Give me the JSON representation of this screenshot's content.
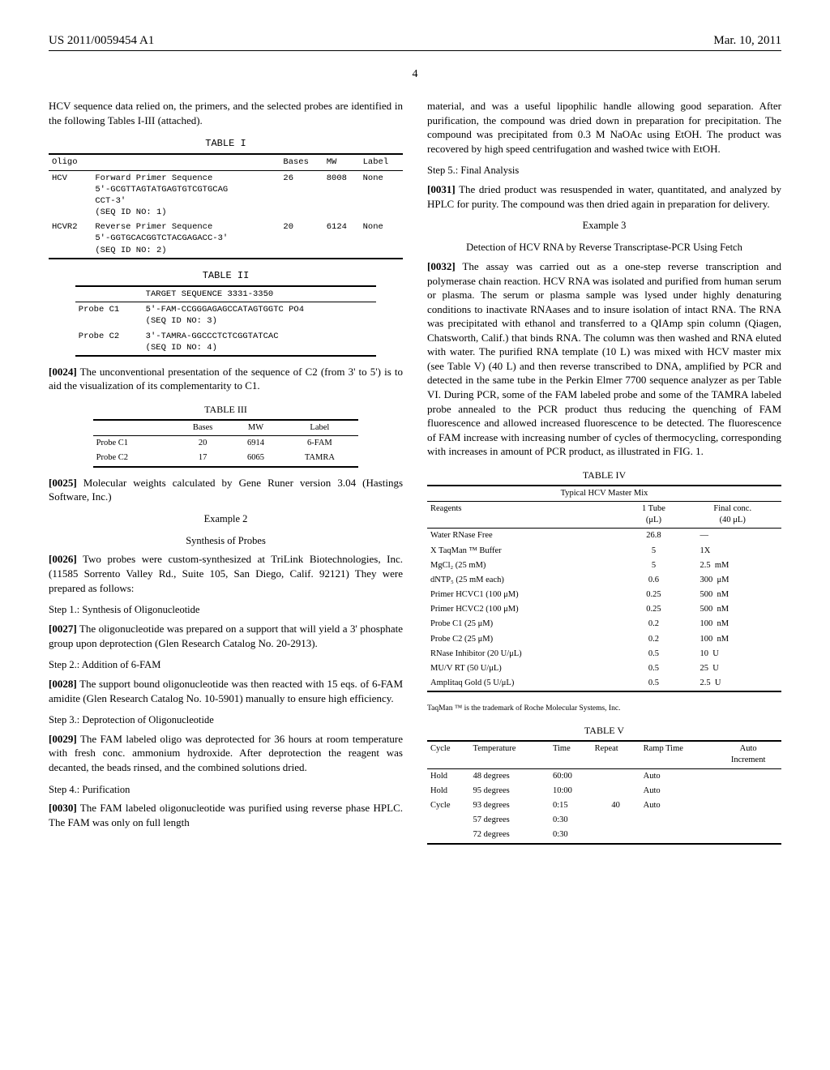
{
  "header": {
    "docnum": "US 2011/0059454 A1",
    "date": "Mar. 10, 2011"
  },
  "pagenum": "4",
  "left": {
    "intro": "HCV sequence data relied on, the primers, and the selected probes are identified in the following Tables I-III (attached).",
    "table1": {
      "title": "TABLE I",
      "cols": [
        "Oligo",
        "",
        "Bases",
        "MW",
        "Label"
      ],
      "rows": [
        {
          "oligo": "HCV",
          "desc": "Forward Primer Sequence\n5'-GCGTTAGTATGAGTGTCGTGCAG\nCCT-3'\n(SEQ ID NO: 1)",
          "bases": "26",
          "mw": "8008",
          "label": "None"
        },
        {
          "oligo": "HCVR2",
          "desc": "Reverse Primer Sequence\n5'-GGTGCACGGTCTACGAGACC-3'\n(SEQ ID NO: 2)",
          "bases": "20",
          "mw": "6124",
          "label": "None"
        }
      ]
    },
    "table2": {
      "title": "TABLE II",
      "header": "TARGET SEQUENCE 3331-3350",
      "rows": [
        {
          "probe": "Probe C1",
          "seq": "5'-FAM-CCGGGAGAGCCATAGTGGTC PO4\n(SEQ ID NO: 3)"
        },
        {
          "probe": "Probe C2",
          "seq": "3'-TAMRA-GGCCCTCTCGGTATCAC\n(SEQ ID NO: 4)"
        }
      ]
    },
    "para24": {
      "num": "[0024]",
      "text": "The unconventional presentation of the sequence of C2 (from 3' to 5') is to aid the visualization of its complementarity to C1."
    },
    "table3": {
      "title": "TABLE III",
      "cols": [
        "",
        "Bases",
        "MW",
        "Label"
      ],
      "rows": [
        {
          "name": "Probe C1",
          "bases": "20",
          "mw": "6914",
          "label": "6-FAM"
        },
        {
          "name": "Probe C2",
          "bases": "17",
          "mw": "6065",
          "label": "TAMRA"
        }
      ]
    },
    "para25": {
      "num": "[0025]",
      "text": "Molecular weights calculated by Gene Runer version 3.04 (Hastings Software, Inc.)"
    },
    "example2": {
      "title": "Example 2",
      "subtitle": "Synthesis of Probes"
    },
    "para26": {
      "num": "[0026]",
      "text": "Two probes were custom-synthesized at TriLink Biotechnologies, Inc. (11585 Sorrento Valley Rd., Suite 105, San Diego, Calif. 92121) They were prepared as follows:"
    },
    "step1": {
      "title": "Step 1.: Synthesis of Oligonucleotide"
    },
    "para27": {
      "num": "[0027]",
      "text": "The oligonucleotide was prepared on a support that will yield a 3' phosphate group upon deprotection (Glen Research Catalog No. 20-2913)."
    },
    "step2": {
      "title": "Step 2.: Addition of 6-FAM"
    },
    "para28": {
      "num": "[0028]",
      "text": "The support bound oligonucleotide was then reacted with 15 eqs. of 6-FAM amidite (Glen Research Catalog No. 10-5901) manually to ensure high efficiency."
    },
    "step3": {
      "title": "Step 3.: Deprotection of Oligonucleotide"
    },
    "para29": {
      "num": "[0029]",
      "text": "The FAM labeled oligo was deprotected for 36 hours at room temperature with fresh conc. ammonium hydroxide. After deprotection the reagent was decanted, the beads rinsed, and the combined solutions dried."
    },
    "step4": {
      "title": "Step 4.: Purification"
    },
    "para30": {
      "num": "[0030]",
      "text": "The FAM labeled oligonucleotide was purified using reverse phase HPLC. The FAM was only on full length"
    }
  },
  "right": {
    "cont": "material, and was a useful lipophilic handle allowing good separation. After purification, the compound was dried down in preparation for precipitation. The compound was precipitated from 0.3 M NaOAc using EtOH. The product was recovered by high speed centrifugation and washed twice with EtOH.",
    "step5": {
      "title": "Step 5.: Final Analysis"
    },
    "para31": {
      "num": "[0031]",
      "text": "The dried product was resuspended in water, quantitated, and analyzed by HPLC for purity. The compound was then dried again in preparation for delivery."
    },
    "example3": {
      "title": "Example 3",
      "subtitle": "Detection of HCV RNA by Reverse Transcriptase-PCR Using Fetch"
    },
    "para32": {
      "num": "[0032]",
      "text": "The assay was carried out as a one-step reverse transcription and polymerase chain reaction. HCV RNA was isolated and purified from human serum or plasma. The serum or plasma sample was lysed under highly denaturing conditions to inactivate RNAases and to insure isolation of intact RNA. The RNA was precipitated with ethanol and transferred to a QIAmp spin column (Qiagen, Chatsworth, Calif.) that binds RNA. The column was then washed and RNA eluted with water. The purified RNA template (10 L) was mixed with HCV master mix (see Table V) (40 L) and then reverse transcribed to DNA, amplified by PCR and detected in the same tube in the Perkin Elmer 7700 sequence analyzer as per Table VI. During PCR, some of the FAM labeled probe and some of the TAMRA labeled probe annealed to the PCR product thus reducing the quenching of FAM fluorescence and allowed increased fluorescence to be detected. The fluorescence of FAM increase with increasing number of cycles of thermocycling, corresponding with increases in amount of PCR product, as illustrated in FIG. 1."
    },
    "table4": {
      "title": "TABLE IV",
      "subtitle": "Typical HCV Master Mix",
      "cols": [
        "Reagents",
        "1 Tube\n(μL)",
        "Final conc.\n(40 μL)"
      ],
      "rows": [
        {
          "r": "Water RNase Free",
          "t": "26.8",
          "f": "—"
        },
        {
          "r": "X TaqMan ™ Buffer",
          "t": "5",
          "f": "1X"
        },
        {
          "r": "MgCl₂ (25 mM)",
          "t": "5",
          "f": "2.5  mM"
        },
        {
          "r": "dNTP₅ (25 mM each)",
          "t": "0.6",
          "f": "300  μM"
        },
        {
          "r": "Primer HCVC1 (100 μM)",
          "t": "0.25",
          "f": "500  nM"
        },
        {
          "r": "Primer HCVC2 (100 μM)",
          "t": "0.25",
          "f": "500  nM"
        },
        {
          "r": "Probe C1 (25 μM)",
          "t": "0.2",
          "f": "100  nM"
        },
        {
          "r": "Probe C2 (25 μM)",
          "t": "0.2",
          "f": "100  nM"
        },
        {
          "r": "RNase Inhibitor (20 U/μL)",
          "t": "0.5",
          "f": "10  U"
        },
        {
          "r": "MU/V RT (50 U/μL)",
          "t": "0.5",
          "f": "25  U"
        },
        {
          "r": "Amplitaq Gold (5 U/μL)",
          "t": "0.5",
          "f": "2.5  U"
        }
      ],
      "footnote": "TaqMan ™ is the trademark of Roche Molecular Systems, Inc."
    },
    "table5": {
      "title": "TABLE V",
      "cols": [
        "Cycle",
        "Temperature",
        "Time",
        "Repeat",
        "Ramp Time",
        "Auto\nIncrement"
      ],
      "rows": [
        {
          "c": "Hold",
          "temp": "48 degrees",
          "time": "60:00",
          "rep": "",
          "ramp": "Auto",
          "inc": ""
        },
        {
          "c": "Hold",
          "temp": "95 degrees",
          "time": "10:00",
          "rep": "",
          "ramp": "Auto",
          "inc": ""
        },
        {
          "c": "Cycle",
          "temp": "93 degrees",
          "time": "0:15",
          "rep": "40",
          "ramp": "Auto",
          "inc": ""
        },
        {
          "c": "",
          "temp": "57 degrees",
          "time": "0:30",
          "rep": "",
          "ramp": "",
          "inc": ""
        },
        {
          "c": "",
          "temp": "72 degrees",
          "time": "0:30",
          "rep": "",
          "ramp": "",
          "inc": ""
        }
      ]
    }
  }
}
